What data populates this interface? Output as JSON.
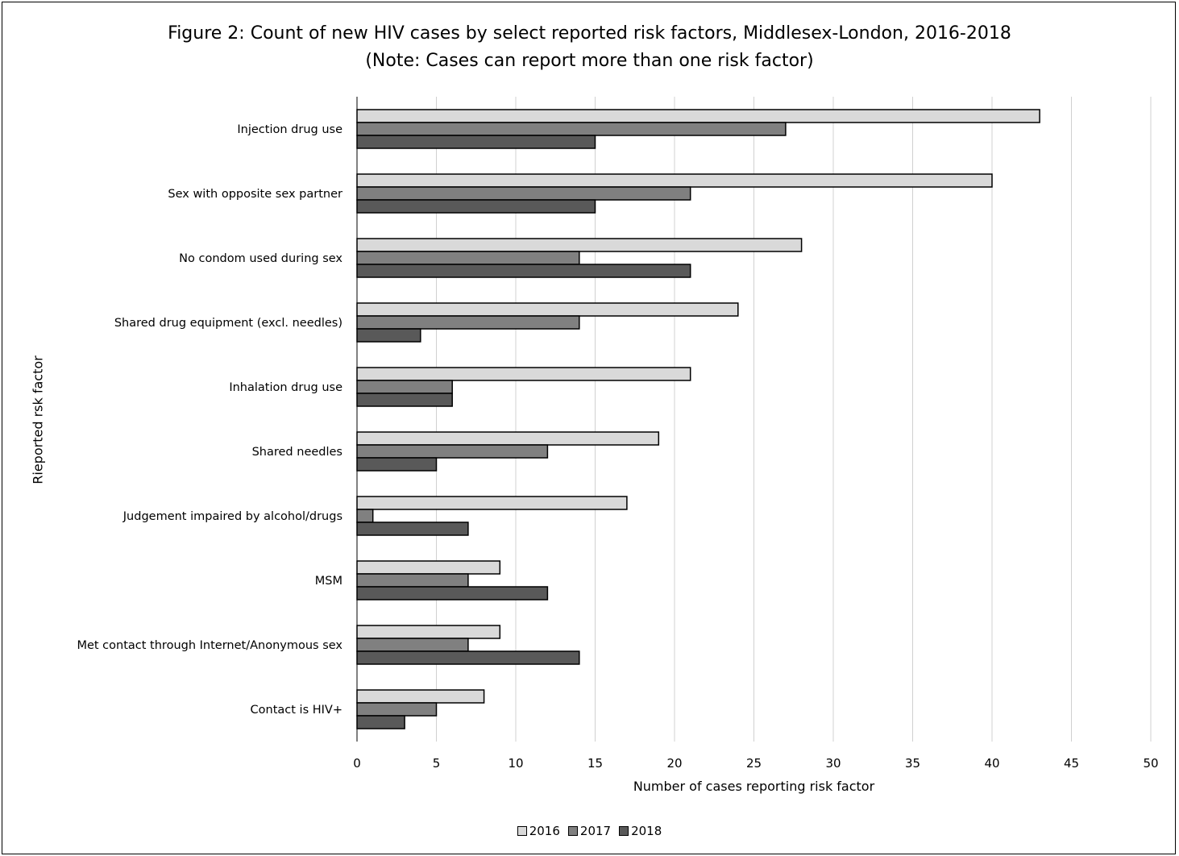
{
  "chart_data": {
    "type": "bar",
    "orientation": "horizontal",
    "title": "Figure 2: Count of new HIV cases by select reported risk factors, Middlesex-London, 2016-2018",
    "subtitle": "(Note: Cases can report more than one risk factor)",
    "xlabel": "Number of cases reporting risk factor",
    "ylabel": "Rieported rsk factor",
    "xlim": [
      0,
      50
    ],
    "xticks": [
      0,
      5,
      10,
      15,
      20,
      25,
      30,
      35,
      40,
      45,
      50
    ],
    "grid": "vertical",
    "legend_position": "bottom",
    "categories": [
      "Injection drug use",
      "Sex with opposite sex partner",
      "No condom used during sex",
      "Shared drug equipment (excl. needles)",
      "Inhalation drug use",
      "Shared needles",
      "Judgement impaired by alcohol/drugs",
      "MSM",
      "Met contact through Internet/Anonymous sex",
      "Contact is HIV+"
    ],
    "series": [
      {
        "name": "2016",
        "color": "#d9d9d9",
        "values": [
          43,
          40,
          28,
          24,
          21,
          19,
          17,
          9,
          9,
          8
        ]
      },
      {
        "name": "2017",
        "color": "#808080",
        "values": [
          27,
          21,
          14,
          14,
          6,
          12,
          1,
          7,
          7,
          5
        ]
      },
      {
        "name": "2018",
        "color": "#595959",
        "values": [
          15,
          15,
          21,
          4,
          6,
          5,
          7,
          12,
          14,
          3
        ]
      }
    ]
  }
}
